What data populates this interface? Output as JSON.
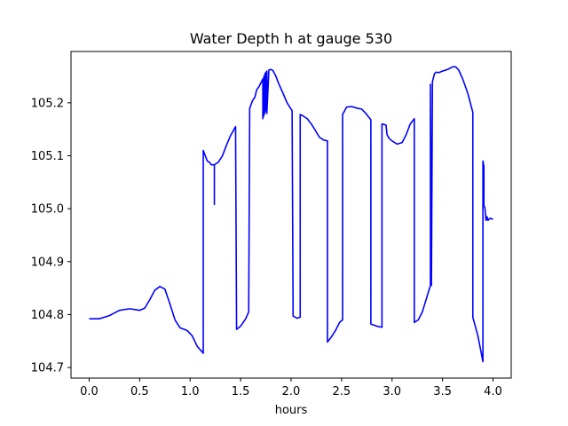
{
  "chart_data": {
    "type": "line",
    "title": "Water Depth h at gauge 530",
    "xlabel": "hours",
    "ylabel": "",
    "xlim": [
      -0.18,
      4.18
    ],
    "ylim": [
      104.68,
      105.297
    ],
    "xticks": [
      0.0,
      0.5,
      1.0,
      1.5,
      2.0,
      2.5,
      3.0,
      3.5,
      4.0
    ],
    "xtick_labels": [
      "0.0",
      "0.5",
      "1.0",
      "1.5",
      "2.0",
      "2.5",
      "3.0",
      "3.5",
      "4.0"
    ],
    "yticks": [
      104.7,
      104.8,
      104.9,
      105.0,
      105.1,
      105.2
    ],
    "ytick_labels": [
      "104.7",
      "104.8",
      "104.9",
      "105.0",
      "105.1",
      "105.2"
    ],
    "grid": false,
    "legend": "none",
    "series": [
      {
        "color": "#0000ff",
        "points": [
          [
            0.0,
            104.792
          ],
          [
            0.1,
            104.792
          ],
          [
            0.2,
            104.798
          ],
          [
            0.3,
            104.808
          ],
          [
            0.4,
            104.811
          ],
          [
            0.5,
            104.808
          ],
          [
            0.55,
            104.812
          ],
          [
            0.6,
            104.828
          ],
          [
            0.65,
            104.846
          ],
          [
            0.7,
            104.853
          ],
          [
            0.75,
            104.848
          ],
          [
            0.8,
            104.82
          ],
          [
            0.85,
            104.79
          ],
          [
            0.9,
            104.775
          ],
          [
            0.97,
            104.77
          ],
          [
            1.02,
            104.76
          ],
          [
            1.07,
            104.74
          ],
          [
            1.13,
            104.727
          ],
          [
            1.13,
            105.11
          ],
          [
            1.15,
            105.1
          ],
          [
            1.17,
            105.09
          ],
          [
            1.19,
            105.088
          ],
          [
            1.21,
            105.083
          ],
          [
            1.24,
            105.083
          ],
          [
            1.24,
            105.008
          ],
          [
            1.24,
            105.083
          ],
          [
            1.28,
            105.088
          ],
          [
            1.32,
            105.1
          ],
          [
            1.36,
            105.12
          ],
          [
            1.4,
            105.138
          ],
          [
            1.45,
            105.155
          ],
          [
            1.46,
            104.772
          ],
          [
            1.5,
            104.778
          ],
          [
            1.55,
            104.792
          ],
          [
            1.58,
            104.805
          ],
          [
            1.59,
            105.19
          ],
          [
            1.62,
            105.205
          ],
          [
            1.64,
            105.21
          ],
          [
            1.66,
            105.225
          ],
          [
            1.68,
            105.23
          ],
          [
            1.72,
            105.245
          ],
          [
            1.72,
            105.17
          ],
          [
            1.73,
            105.25
          ],
          [
            1.73,
            105.175
          ],
          [
            1.74,
            105.255
          ],
          [
            1.74,
            105.18
          ],
          [
            1.75,
            105.258
          ],
          [
            1.75,
            105.185
          ],
          [
            1.76,
            105.26
          ],
          [
            1.76,
            105.18
          ],
          [
            1.78,
            105.262
          ],
          [
            1.8,
            105.263
          ],
          [
            1.82,
            105.261
          ],
          [
            1.85,
            105.25
          ],
          [
            1.88,
            105.235
          ],
          [
            1.92,
            105.218
          ],
          [
            1.96,
            105.2
          ],
          [
            2.01,
            105.185
          ],
          [
            2.02,
            104.797
          ],
          [
            2.06,
            104.793
          ],
          [
            2.09,
            104.795
          ],
          [
            2.09,
            105.178
          ],
          [
            2.12,
            105.175
          ],
          [
            2.16,
            105.17
          ],
          [
            2.2,
            105.16
          ],
          [
            2.24,
            105.148
          ],
          [
            2.28,
            105.135
          ],
          [
            2.32,
            105.13
          ],
          [
            2.36,
            105.128
          ],
          [
            2.36,
            104.748
          ],
          [
            2.4,
            104.758
          ],
          [
            2.44,
            104.77
          ],
          [
            2.48,
            104.785
          ],
          [
            2.51,
            104.79
          ],
          [
            2.51,
            105.178
          ],
          [
            2.55,
            105.192
          ],
          [
            2.6,
            105.193
          ],
          [
            2.65,
            105.19
          ],
          [
            2.7,
            105.188
          ],
          [
            2.74,
            105.18
          ],
          [
            2.79,
            105.168
          ],
          [
            2.79,
            104.782
          ],
          [
            2.85,
            104.778
          ],
          [
            2.9,
            104.776
          ],
          [
            2.9,
            105.16
          ],
          [
            2.94,
            105.158
          ],
          [
            2.95,
            105.14
          ],
          [
            2.97,
            105.133
          ],
          [
            3.0,
            105.128
          ],
          [
            3.05,
            105.122
          ],
          [
            3.1,
            105.125
          ],
          [
            3.14,
            105.14
          ],
          [
            3.18,
            105.16
          ],
          [
            3.22,
            105.17
          ],
          [
            3.22,
            104.785
          ],
          [
            3.26,
            104.79
          ],
          [
            3.3,
            104.805
          ],
          [
            3.34,
            104.83
          ],
          [
            3.38,
            104.855
          ],
          [
            3.38,
            105.235
          ],
          [
            3.39,
            104.855
          ],
          [
            3.4,
            105.24
          ],
          [
            3.42,
            105.255
          ],
          [
            3.44,
            105.258
          ],
          [
            3.46,
            105.257
          ],
          [
            3.5,
            105.26
          ],
          [
            3.55,
            105.263
          ],
          [
            3.6,
            105.268
          ],
          [
            3.63,
            105.268
          ],
          [
            3.66,
            105.262
          ],
          [
            3.7,
            105.245
          ],
          [
            3.75,
            105.218
          ],
          [
            3.8,
            105.182
          ],
          [
            3.8,
            104.795
          ],
          [
            3.85,
            104.76
          ],
          [
            3.9,
            104.711
          ],
          [
            3.9,
            105.09
          ],
          [
            3.91,
            105.08
          ],
          [
            3.91,
            105.005
          ],
          [
            3.92,
            105.002
          ],
          [
            3.93,
            104.978
          ],
          [
            3.94,
            104.985
          ],
          [
            3.95,
            104.978
          ],
          [
            3.97,
            104.982
          ],
          [
            4.0,
            104.98
          ]
        ]
      }
    ]
  }
}
